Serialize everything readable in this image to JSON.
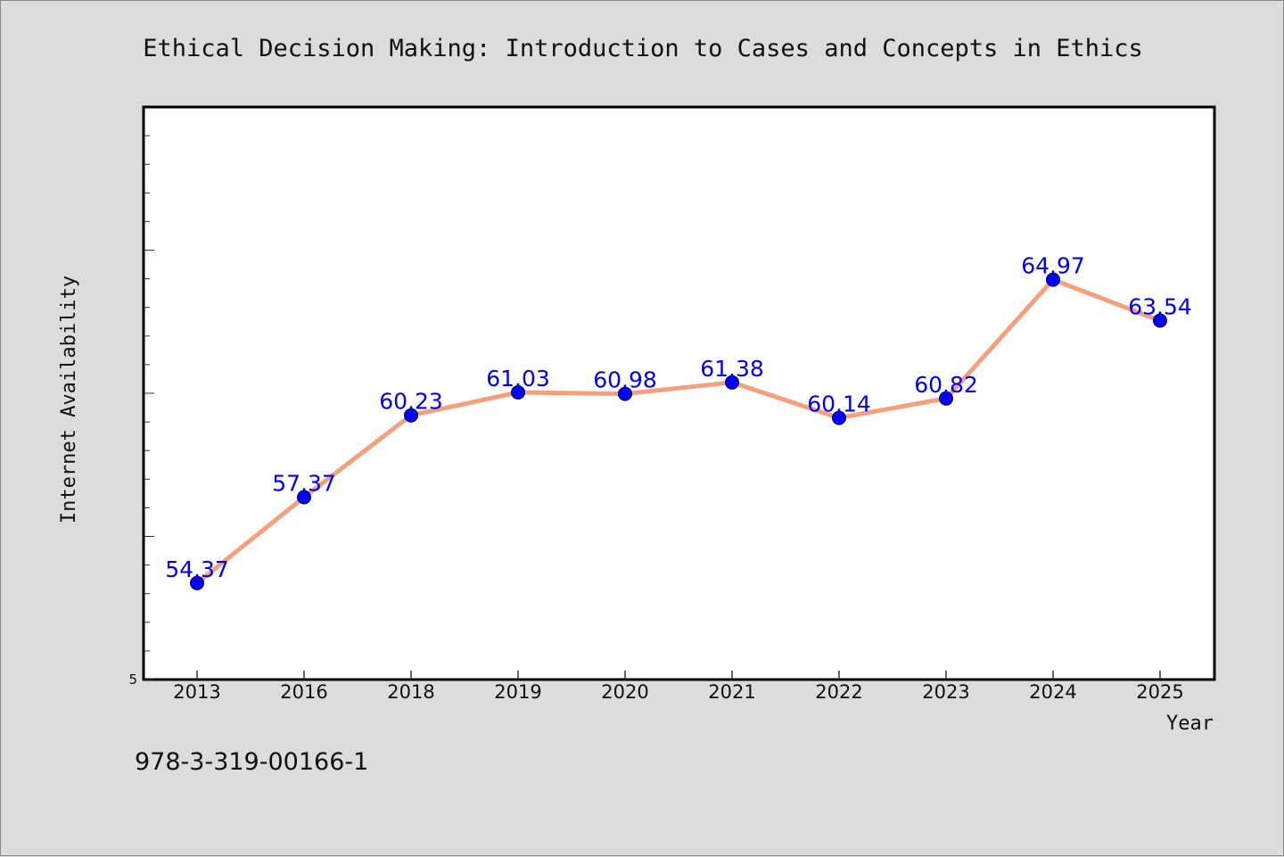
{
  "chart_data": {
    "type": "line",
    "title": "Ethical Decision Making: Introduction to Cases and Concepts in Ethics",
    "xlabel": "Year",
    "ylabel": "Internet Availability",
    "categories": [
      "2013",
      "2016",
      "2018",
      "2019",
      "2020",
      "2021",
      "2022",
      "2023",
      "2024",
      "2025"
    ],
    "series": [
      {
        "values": [
          54.37,
          57.37,
          60.23,
          61.03,
          60.98,
          61.38,
          60.14,
          60.82,
          64.97,
          63.54
        ],
        "labels": [
          "54.37",
          "57.37",
          "60.23",
          "61.03",
          "60.98",
          "61.38",
          "60.14",
          "60.82",
          "64.97",
          "63.54"
        ]
      }
    ],
    "y_tick_labels": [
      "5"
    ],
    "ylim": [
      51.0,
      71.0
    ],
    "grid": false,
    "legend": "none",
    "colors": {
      "line": "#f4a07c",
      "marker": "#0000ff",
      "label": "#0000ff",
      "plot_background": "#ffffff",
      "page_background": "#dcdcdc"
    }
  },
  "footer": {
    "isbn": "978-3-319-00166-1"
  }
}
